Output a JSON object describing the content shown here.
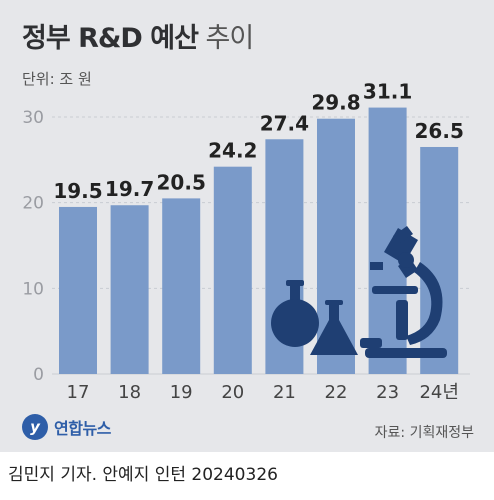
{
  "title": {
    "bold": "정부 R&D 예산",
    "light": "추이"
  },
  "unit": "단위: 조 원",
  "logo": {
    "mark": "y",
    "name": "연합뉴스"
  },
  "source": "자료: 기획재정부",
  "credit": "김민지 기자. 안예지 인턴 20240326",
  "colors": {
    "bar": "#7a9ac9",
    "grid": "#c9ccd2",
    "icon": "#1f3f73",
    "text": "#222222"
  },
  "chart_data": {
    "type": "bar",
    "categories": [
      "17",
      "18",
      "19",
      "20",
      "21",
      "22",
      "23",
      "24년"
    ],
    "values": [
      19.5,
      19.7,
      20.5,
      24.2,
      27.4,
      29.8,
      31.1,
      26.5
    ],
    "value_labels": [
      "19.5",
      "19.7",
      "20.5",
      "24.2",
      "27.4",
      "29.8",
      "31.1",
      "26.5"
    ],
    "yticks": [
      "0",
      "10",
      "20",
      "30"
    ],
    "ylim": [
      0,
      30
    ],
    "grid": true
  }
}
